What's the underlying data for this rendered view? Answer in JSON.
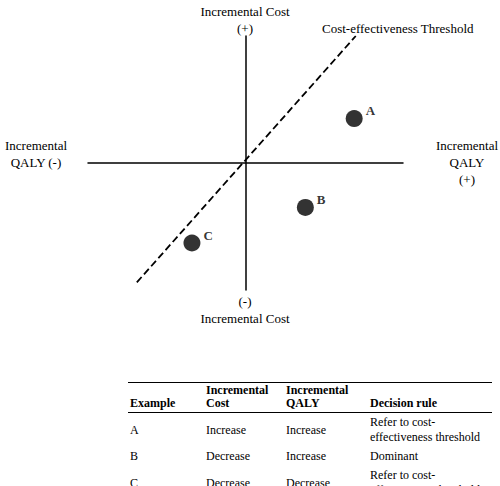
{
  "chart_data": {
    "type": "scatter",
    "xlim": [
      -1,
      1
    ],
    "ylim": [
      -1,
      1
    ],
    "tick_labels": false,
    "grid": false,
    "data_labels": true,
    "axis_labels": {
      "y_positive": "Incremental Cost\n(+)",
      "y_negative": "(-)\nIncremental Cost",
      "x_negative": "Incremental\nQALY (-)",
      "x_positive": "Incremental\nQALY\n(+)"
    },
    "points": {
      "labels": [
        "A",
        "B",
        "C"
      ],
      "x": [
        0.69,
        0.38,
        -0.34
      ],
      "y": [
        0.35,
        -0.35,
        -0.63
      ],
      "color": "#000000",
      "marker": "circle"
    },
    "threshold": {
      "label": "Cost-effectiveness Threshold",
      "x": [
        -0.69,
        0.7
      ],
      "y": [
        -0.94,
        1
      ],
      "color": "#000000",
      "line_style": "dashed"
    }
  },
  "table": {
    "header": [
      "Example",
      "Incremental Cost",
      "Incremental QALY",
      "Decision rule"
    ],
    "rows": [
      [
        "A",
        "Increase",
        "Increase",
        "Refer to cost-effectiveness threshold"
      ],
      [
        "B",
        "Decrease",
        "Increase",
        "Dominant"
      ],
      [
        "C",
        "Decrease",
        "Decrease",
        "Refer to cost-effectiveness threshold"
      ]
    ]
  }
}
